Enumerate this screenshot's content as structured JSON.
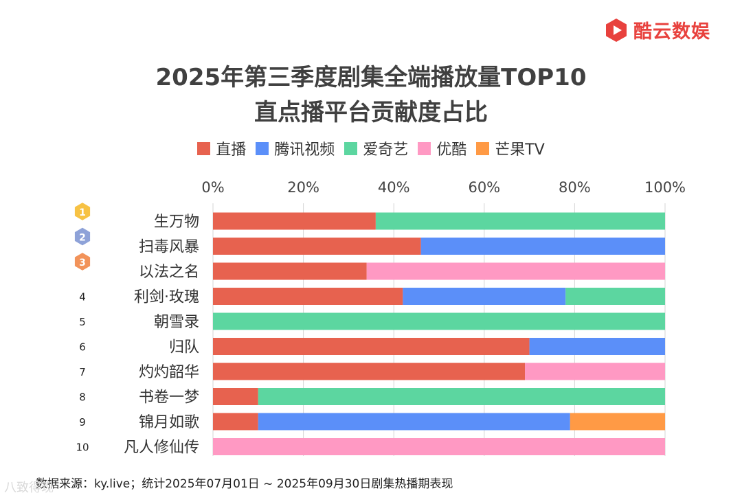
{
  "brand": {
    "name": "酷云数娱",
    "color": "#e8413d"
  },
  "chart_data": {
    "type": "bar",
    "orientation": "horizontal",
    "stacked": "percent",
    "title_line1": "2025年第三季度剧集全端播放量TOP10",
    "title_line2": "直点播平台贡献度占比",
    "xlim": [
      0,
      100
    ],
    "xticks": [
      "0%",
      "20%",
      "40%",
      "60%",
      "80%",
      "100%"
    ],
    "categories": [
      "生万物",
      "扫毒风暴",
      "以法之名",
      "利剑·玫瑰",
      "朝雪录",
      "归队",
      "灼灼韶华",
      "书卷一梦",
      "锦月如歌",
      "凡人修仙传"
    ],
    "ranks": [
      "1",
      "2",
      "3",
      "4",
      "5",
      "6",
      "7",
      "8",
      "9",
      "10"
    ],
    "series": [
      {
        "name": "直播",
        "color": "#e7624f",
        "values": [
          36,
          46,
          34,
          42,
          0,
          70,
          69,
          10,
          10,
          0
        ]
      },
      {
        "name": "腾讯视频",
        "color": "#5b8ff9",
        "values": [
          0,
          54,
          0,
          36,
          0,
          30,
          0,
          0,
          69,
          0
        ]
      },
      {
        "name": "爱奇艺",
        "color": "#5cd6a0",
        "values": [
          64,
          0,
          0,
          22,
          100,
          0,
          0,
          90,
          0,
          0
        ]
      },
      {
        "name": "优酷",
        "color": "#ff99c3",
        "values": [
          0,
          0,
          66,
          0,
          0,
          0,
          31,
          0,
          0,
          100
        ]
      },
      {
        "name": "芒果TV",
        "color": "#ff9a45",
        "values": [
          0,
          0,
          0,
          0,
          0,
          0,
          0,
          0,
          21,
          0
        ]
      }
    ],
    "medal_colors": [
      "#f7c244",
      "#8ea2d8",
      "#f2935a"
    ]
  },
  "footer": {
    "source": "数据来源：ky.live；统计2025年07月01日 ~ 2025年09月30日剧集热播期表现"
  },
  "watermark": {
    "text": "八致得现"
  }
}
